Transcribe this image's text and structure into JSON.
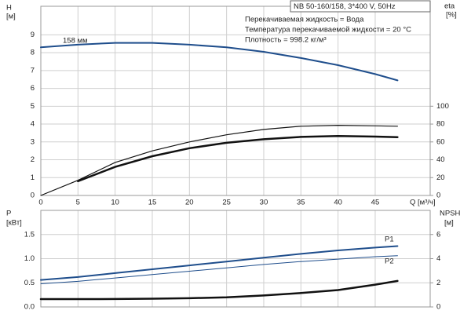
{
  "chart_data": [
    {
      "type": "line",
      "title": "NB 50-160/158, 3*400 V, 50Hz",
      "annotations": [
        "Перекачиваемая жидкость = Вода",
        "Температура перекачиваемой жидкости = 20 °C",
        "Плотность = 998.2 кг/м³"
      ],
      "ylabel": "H",
      "yunit": "[м]",
      "y2label": "eta",
      "y2unit": "[%]",
      "xlabel": "Q [м³/ч]",
      "x": [
        0,
        5,
        10,
        15,
        20,
        25,
        30,
        35,
        40,
        45,
        48
      ],
      "xlim": [
        0,
        52.4
      ],
      "xticks": [
        0,
        5,
        10,
        15,
        20,
        25,
        30,
        35,
        40,
        45
      ],
      "ylim": [
        0,
        10.6
      ],
      "yticks": [
        0,
        1,
        2,
        3,
        4,
        5,
        6,
        7,
        8,
        9
      ],
      "y2lim": [
        0,
        212
      ],
      "y2ticks": [
        0,
        20,
        40,
        60,
        80,
        100
      ],
      "grid": true,
      "series": [
        {
          "name": "158 мм",
          "color": "#1f4e8c",
          "linewidth": 2,
          "values": [
            8.3,
            8.45,
            8.55,
            8.55,
            8.45,
            8.3,
            8.05,
            7.7,
            7.3,
            6.8,
            6.45
          ]
        },
        {
          "color": "#111111",
          "linewidth": 1.2,
          "axis": "y2",
          "values": [
            0,
            17,
            37,
            50,
            60,
            68,
            74,
            77.6,
            78.6,
            78,
            77.6
          ]
        },
        {
          "color": "#111111",
          "linewidth": 2.5,
          "axis": "y2",
          "values": [
            null,
            16,
            32,
            44,
            53,
            59,
            63,
            65.6,
            66.6,
            66,
            65.4
          ]
        }
      ]
    },
    {
      "type": "line",
      "ylabel": "P",
      "yunit": "[кВт]",
      "y2label": "NPSH",
      "y2unit": "[м]",
      "x": [
        0,
        5,
        10,
        15,
        20,
        25,
        30,
        35,
        40,
        45,
        48
      ],
      "xlim": [
        0,
        52.4
      ],
      "xticks": [
        0,
        5,
        10,
        15,
        20,
        25,
        30,
        35,
        40,
        45
      ],
      "ylim": [
        0,
        2
      ],
      "yticks": [
        {
          "value": 0,
          "label": "0.0"
        },
        0.5,
        {
          "value": 1,
          "label": "1.0"
        },
        1.5
      ],
      "y2lim": [
        0,
        8
      ],
      "y2ticks": [
        0,
        2,
        4,
        6
      ],
      "grid": true,
      "series": [
        {
          "name": "P1",
          "color": "#1f4e8c",
          "linewidth": 2,
          "values": [
            0.56,
            0.62,
            0.7,
            0.78,
            0.86,
            0.94,
            1.02,
            1.1,
            1.17,
            1.23,
            1.26
          ]
        },
        {
          "name": "P2",
          "color": "#1f4e8c",
          "linewidth": 1,
          "values": [
            0.48,
            0.53,
            0.6,
            0.67,
            0.74,
            0.81,
            0.88,
            0.94,
            0.99,
            1.04,
            1.06
          ]
        },
        {
          "color": "#111111",
          "linewidth": 2.5,
          "axis": "y2",
          "values": [
            0.65,
            0.65,
            0.66,
            0.68,
            0.72,
            0.8,
            0.95,
            1.15,
            1.4,
            1.85,
            2.15
          ]
        }
      ]
    }
  ]
}
